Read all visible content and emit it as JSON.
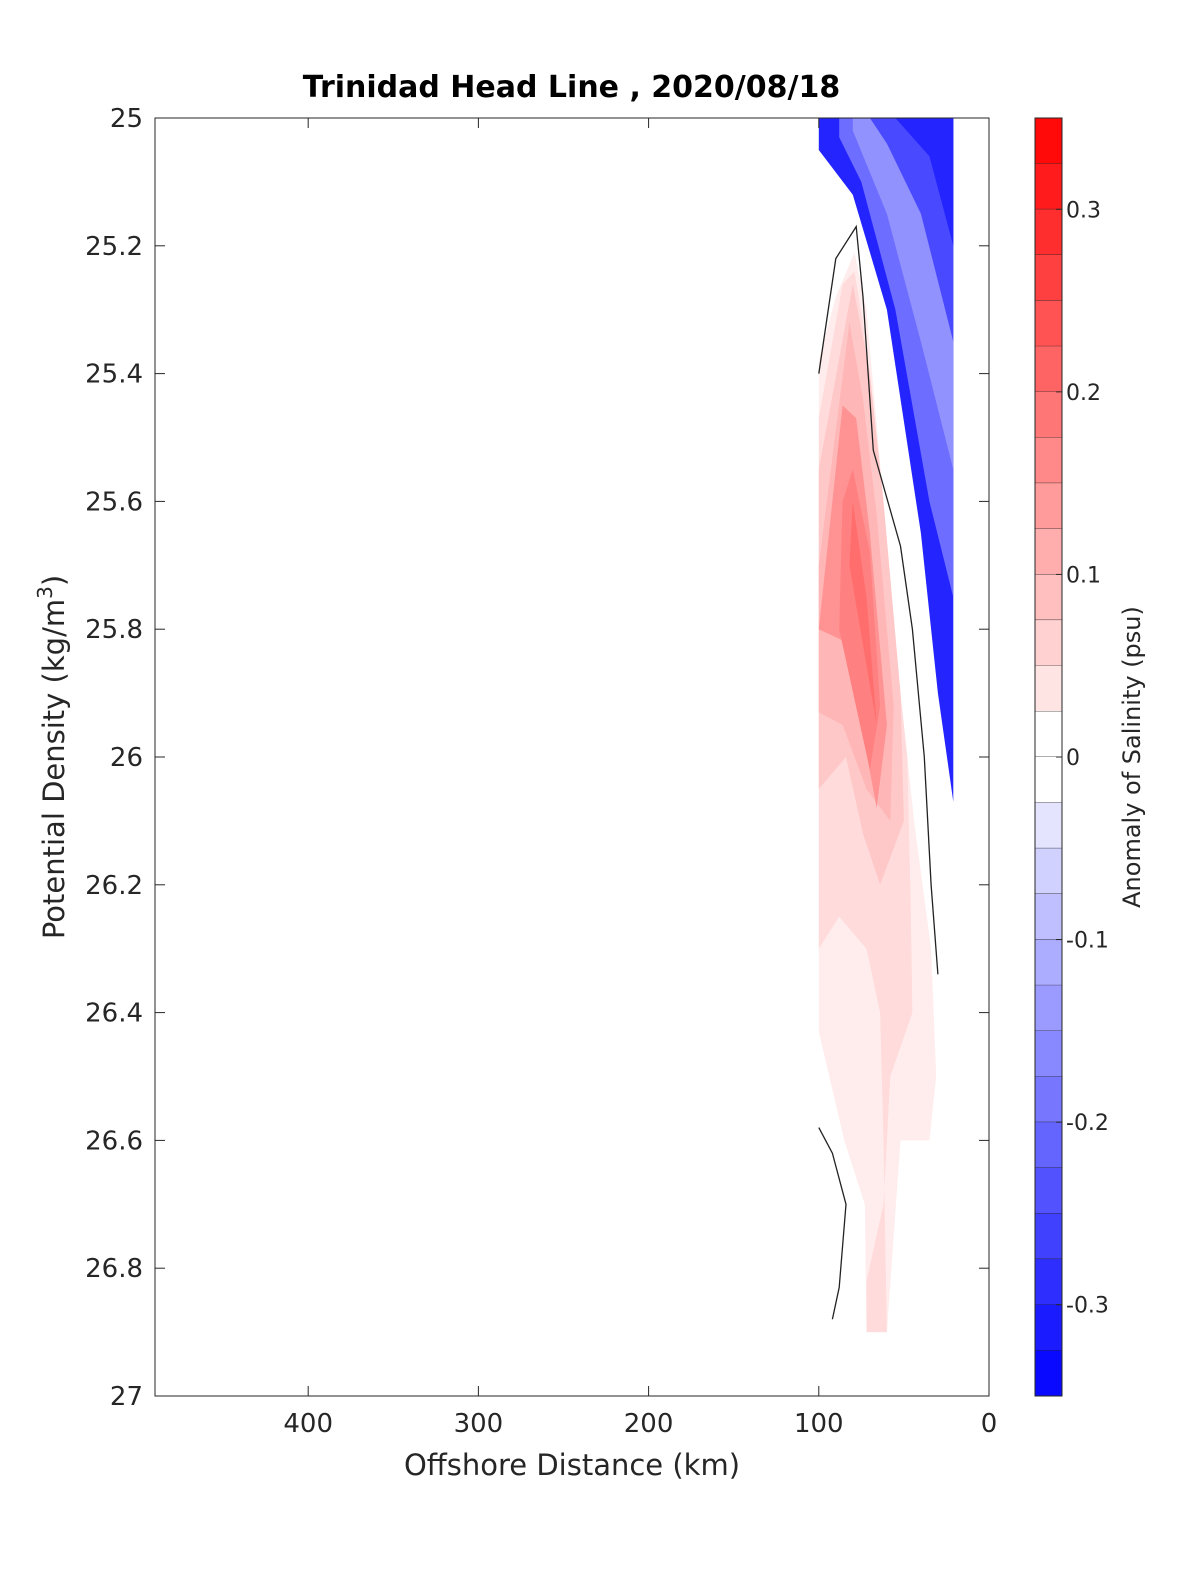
{
  "chart_data": {
    "type": "contour",
    "title": "Trinidad Head Line , 2020/08/18",
    "xlabel": "Offshore Distance (km)",
    "ylabel": "Potential Density (kg/m",
    "ylabel_superscript": "3",
    "ylabel_suffix": ")",
    "xlim": [
      490,
      0
    ],
    "ylim": [
      25,
      27
    ],
    "y_reversed": true,
    "x_reversed": true,
    "x_ticks": [
      400,
      300,
      200,
      100,
      0
    ],
    "y_ticks": [
      25,
      25.2,
      25.4,
      25.6,
      25.8,
      26,
      26.2,
      26.4,
      26.6,
      26.8,
      27
    ],
    "y_tick_labels": [
      "25",
      "25.2",
      "25.4",
      "25.6",
      "25.8",
      "26",
      "26.2",
      "26.4",
      "26.6",
      "26.8",
      "27"
    ],
    "x_tick_labels": [
      "400",
      "300",
      "200",
      "100",
      "0"
    ],
    "colorbar": {
      "label": "Anomaly of Salinity (psu)",
      "range": [
        -0.35,
        0.35
      ],
      "step": 0.025,
      "ticks": [
        0.3,
        0.2,
        0.1,
        0,
        -0.1,
        -0.2,
        -0.3
      ],
      "tick_labels": [
        "0.3",
        "0.2",
        "0.1",
        "0",
        "-0.1",
        "-0.2",
        "-0.3"
      ],
      "max_color": "#ff0000",
      "min_color": "#0000ff",
      "zero_color": "#ffffff"
    },
    "filled_regions": [
      {
        "name": "negative-anomaly",
        "level": -0.3,
        "points": [
          [
            100,
            25
          ],
          [
            21,
            25
          ],
          [
            21,
            26.07
          ],
          [
            30,
            25.9
          ],
          [
            40,
            25.65
          ],
          [
            60,
            25.3
          ],
          [
            80,
            25.12
          ],
          [
            100,
            25.05
          ]
        ]
      },
      {
        "name": "negative-anomaly",
        "level": -0.2,
        "points": [
          [
            88,
            25
          ],
          [
            21,
            25
          ],
          [
            21,
            25.75
          ],
          [
            35,
            25.6
          ],
          [
            55,
            25.3
          ],
          [
            75,
            25.1
          ],
          [
            88,
            25.03
          ]
        ]
      },
      {
        "name": "negative-anomaly",
        "level": -0.15,
        "points": [
          [
            80,
            25
          ],
          [
            21,
            25
          ],
          [
            21,
            25.55
          ],
          [
            40,
            25.35
          ],
          [
            60,
            25.15
          ],
          [
            80,
            25.02
          ]
        ]
      },
      {
        "name": "negative-anomaly",
        "level": -0.25,
        "points": [
          [
            70,
            25
          ],
          [
            21,
            25
          ],
          [
            21,
            25.35
          ],
          [
            40,
            25.15
          ],
          [
            60,
            25.04
          ]
        ]
      },
      {
        "name": "negative-anomaly",
        "level": -0.3,
        "points": [
          [
            55,
            25
          ],
          [
            21,
            25
          ],
          [
            21,
            25.2
          ],
          [
            35,
            25.06
          ]
        ]
      },
      {
        "name": "positive-anomaly",
        "level": 0.025,
        "points": [
          [
            100,
            25.38
          ],
          [
            90,
            25.28
          ],
          [
            79,
            25.21
          ],
          [
            72,
            25.3
          ],
          [
            62,
            25.6
          ],
          [
            52,
            25.9
          ],
          [
            44,
            26.1
          ],
          [
            34,
            26.3
          ],
          [
            31,
            26.5
          ],
          [
            35,
            26.6
          ],
          [
            52,
            26.6
          ],
          [
            60,
            26.9
          ],
          [
            72,
            26.9
          ],
          [
            73,
            26.7
          ],
          [
            85,
            26.6
          ],
          [
            100,
            26.43
          ]
        ]
      },
      {
        "name": "positive-anomaly",
        "level": 0.05,
        "points": [
          [
            100,
            26.3
          ],
          [
            88,
            26.25
          ],
          [
            72,
            26.3
          ],
          [
            64,
            26.4
          ],
          [
            62,
            26.6
          ],
          [
            60,
            26.9
          ],
          [
            72,
            26.9
          ],
          [
            72,
            26.82
          ],
          [
            62,
            26.7
          ],
          [
            58,
            26.5
          ],
          [
            45,
            26.4
          ],
          [
            46,
            26.23
          ],
          [
            48,
            26.0
          ],
          [
            58,
            25.75
          ],
          [
            64,
            25.56
          ],
          [
            74,
            25.32
          ],
          [
            79,
            25.24
          ],
          [
            86,
            25.26
          ],
          [
            100,
            25.47
          ]
        ]
      },
      {
        "name": "positive-anomaly",
        "level": 0.075,
        "points": [
          [
            100,
            26.05
          ],
          [
            84,
            26.0
          ],
          [
            74,
            26.12
          ],
          [
            64,
            26.2
          ],
          [
            50,
            26.1
          ],
          [
            52,
            25.9
          ],
          [
            62,
            25.6
          ],
          [
            70,
            25.4
          ],
          [
            80,
            25.26
          ],
          [
            100,
            25.55
          ]
        ]
      },
      {
        "name": "positive-anomaly",
        "level": 0.1,
        "points": [
          [
            100,
            25.93
          ],
          [
            86,
            25.95
          ],
          [
            72,
            26.05
          ],
          [
            58,
            26.1
          ],
          [
            56,
            25.92
          ],
          [
            66,
            25.62
          ],
          [
            74,
            25.44
          ],
          [
            82,
            25.32
          ],
          [
            100,
            25.7
          ]
        ]
      },
      {
        "name": "positive-anomaly",
        "level": 0.15,
        "points": [
          [
            100,
            25.8
          ],
          [
            84,
            25.82
          ],
          [
            66,
            26.08
          ],
          [
            60,
            25.95
          ],
          [
            70,
            25.65
          ],
          [
            78,
            25.47
          ],
          [
            86,
            25.45
          ],
          [
            100,
            25.8
          ]
        ]
      },
      {
        "name": "positive-anomaly",
        "level": 0.175,
        "points": [
          [
            88,
            25.8
          ],
          [
            70,
            26.02
          ],
          [
            64,
            25.92
          ],
          [
            70,
            25.68
          ],
          [
            80,
            25.55
          ],
          [
            86,
            25.6
          ]
        ]
      },
      {
        "name": "positive-anomaly",
        "level": 0.2,
        "points": [
          [
            82,
            25.7
          ],
          [
            66,
            25.95
          ],
          [
            72,
            25.75
          ],
          [
            80,
            25.6
          ]
        ]
      }
    ],
    "zero_contours": [
      [
        [
          100,
          25.4
        ],
        [
          90,
          25.22
        ],
        [
          78,
          25.17
        ],
        [
          74,
          25.28
        ],
        [
          68,
          25.52
        ],
        [
          52,
          25.67
        ],
        [
          45,
          25.8
        ],
        [
          38,
          26.0
        ],
        [
          34,
          26.2
        ],
        [
          30,
          26.34
        ]
      ],
      [
        [
          100,
          26.58
        ],
        [
          92,
          26.62
        ],
        [
          84,
          26.7
        ],
        [
          88,
          26.83
        ],
        [
          92,
          26.88
        ]
      ]
    ]
  }
}
